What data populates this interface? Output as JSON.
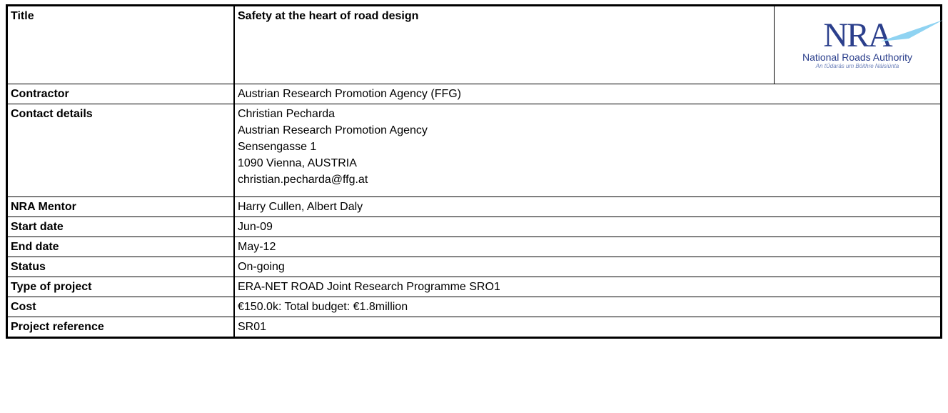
{
  "table": {
    "title_row": {
      "label": "Title",
      "value": "Safety at the heart of road design"
    },
    "logo": {
      "mark": "NRA",
      "name": "National Roads Authority",
      "irish": "An tÚdarás um Bóithre Náisiúnta"
    },
    "rows": [
      {
        "label": "Contractor",
        "lines": [
          "Austrian Research Promotion Agency (FFG)"
        ]
      },
      {
        "label": "Contact details",
        "lines": [
          "Christian Pecharda",
          "Austrian Research Promotion Agency",
          "Sensengasse 1",
          "1090 Vienna, AUSTRIA",
          "christian.pecharda@ffg.at"
        ]
      },
      {
        "label": "NRA Mentor",
        "lines": [
          "Harry Cullen, Albert Daly"
        ]
      },
      {
        "label": "Start date",
        "lines": [
          "Jun-09"
        ]
      },
      {
        "label": "End date",
        "lines": [
          "May-12"
        ]
      },
      {
        "label": "Status",
        "lines": [
          "On-going"
        ]
      },
      {
        "label": "Type of project",
        "lines": [
          "ERA-NET ROAD Joint Research Programme SRO1"
        ]
      },
      {
        "label": "Cost",
        "lines": [
          "€150.0k: Total budget: €1.8million"
        ]
      },
      {
        "label": "Project reference",
        "lines": [
          "SR01"
        ]
      }
    ]
  }
}
